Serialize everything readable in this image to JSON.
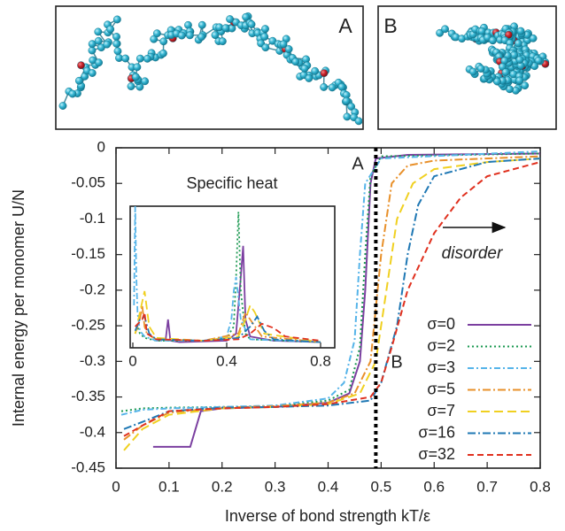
{
  "panels": [
    {
      "label": "A"
    },
    {
      "label": "B"
    }
  ],
  "chart_data": [
    {
      "type": "line",
      "xlabel": "Inverse of bond strength kT/ε",
      "ylabel": "Internal energy per monomer U/N",
      "xlim": [
        0,
        0.8
      ],
      "ylim": [
        -0.45,
        0
      ],
      "xticks": [
        0,
        0.1,
        0.2,
        0.3,
        0.4,
        0.5,
        0.6,
        0.7,
        0.8
      ],
      "yticks": [
        0,
        -0.05,
        -0.1,
        -0.15,
        -0.2,
        -0.25,
        -0.3,
        -0.35,
        -0.4,
        -0.45
      ],
      "legend": "bottom-right",
      "vline": 0.49,
      "annotations": [
        "A",
        "B",
        "disorder"
      ],
      "series": [
        {
          "name": "σ=0",
          "color": "#7b3fa0",
          "dash": "none",
          "x": [
            0.07,
            0.14,
            0.16,
            0.2,
            0.3,
            0.4,
            0.44,
            0.46,
            0.47,
            0.48,
            0.49,
            0.55,
            0.8
          ],
          "values": [
            -0.42,
            -0.42,
            -0.37,
            -0.366,
            -0.364,
            -0.358,
            -0.345,
            -0.3,
            -0.2,
            -0.05,
            -0.015,
            -0.01,
            -0.008
          ]
        },
        {
          "name": "σ=2",
          "color": "#1a9850",
          "dash": "2,3",
          "x": [
            0.01,
            0.05,
            0.1,
            0.3,
            0.4,
            0.44,
            0.46,
            0.47,
            0.48,
            0.5,
            0.8
          ],
          "values": [
            -0.37,
            -0.366,
            -0.365,
            -0.363,
            -0.355,
            -0.34,
            -0.28,
            -0.15,
            -0.04,
            -0.012,
            -0.008
          ]
        },
        {
          "name": "σ=3",
          "color": "#56b4e9",
          "dash": "7,3,2,3",
          "x": [
            0.01,
            0.05,
            0.1,
            0.3,
            0.4,
            0.43,
            0.45,
            0.46,
            0.47,
            0.5,
            0.8
          ],
          "values": [
            -0.375,
            -0.368,
            -0.366,
            -0.362,
            -0.352,
            -0.33,
            -0.27,
            -0.15,
            -0.05,
            -0.015,
            -0.005
          ]
        },
        {
          "name": "σ=5",
          "color": "#e8902a",
          "dash": "9,3,2,3",
          "x": [
            0.015,
            0.05,
            0.1,
            0.2,
            0.3,
            0.4,
            0.45,
            0.48,
            0.5,
            0.52,
            0.55,
            0.6,
            0.8
          ],
          "values": [
            -0.41,
            -0.39,
            -0.372,
            -0.365,
            -0.363,
            -0.358,
            -0.345,
            -0.3,
            -0.15,
            -0.05,
            -0.025,
            -0.018,
            -0.012
          ]
        },
        {
          "name": "σ=7",
          "color": "#f0d020",
          "dash": "10,5",
          "x": [
            0.015,
            0.05,
            0.1,
            0.2,
            0.3,
            0.4,
            0.46,
            0.49,
            0.51,
            0.53,
            0.56,
            0.6,
            0.7,
            0.8
          ],
          "values": [
            -0.425,
            -0.395,
            -0.375,
            -0.366,
            -0.364,
            -0.36,
            -0.345,
            -0.3,
            -0.2,
            -0.1,
            -0.05,
            -0.03,
            -0.02,
            -0.015
          ]
        },
        {
          "name": "σ=16",
          "color": "#1f78b4",
          "dash": "9,3,2,3",
          "x": [
            0.015,
            0.05,
            0.1,
            0.2,
            0.3,
            0.4,
            0.48,
            0.5,
            0.53,
            0.55,
            0.57,
            0.6,
            0.7,
            0.8
          ],
          "values": [
            -0.395,
            -0.385,
            -0.37,
            -0.365,
            -0.364,
            -0.362,
            -0.355,
            -0.33,
            -0.25,
            -0.15,
            -0.08,
            -0.04,
            -0.02,
            -0.015
          ]
        },
        {
          "name": "σ=32",
          "color": "#e0301e",
          "dash": "7,4",
          "x": [
            0.015,
            0.05,
            0.1,
            0.2,
            0.3,
            0.4,
            0.48,
            0.5,
            0.52,
            0.55,
            0.6,
            0.65,
            0.7,
            0.8
          ],
          "values": [
            -0.405,
            -0.39,
            -0.37,
            -0.366,
            -0.364,
            -0.36,
            -0.35,
            -0.33,
            -0.28,
            -0.2,
            -0.12,
            -0.07,
            -0.04,
            -0.02
          ]
        }
      ]
    },
    {
      "type": "line",
      "title": "Specific heat",
      "xlim": [
        0,
        0.8
      ],
      "ylim": [
        0,
        1
      ],
      "xticks": [
        0,
        0.4,
        0.8
      ],
      "series": [
        {
          "color": "#7b3fa0",
          "dash": "none",
          "x": [
            0.1,
            0.14,
            0.15,
            0.16,
            0.2,
            0.4,
            0.44,
            0.46,
            0.47,
            0.48,
            0.5,
            0.6,
            0.8
          ],
          "values": [
            0.05,
            0.06,
            0.2,
            0.05,
            0.04,
            0.05,
            0.1,
            0.5,
            0.72,
            0.2,
            0.08,
            0.05,
            0.04
          ]
        },
        {
          "color": "#1a9850",
          "dash": "2,3",
          "x": [
            0.01,
            0.02,
            0.03,
            0.05,
            0.1,
            0.3,
            0.4,
            0.43,
            0.44,
            0.45,
            0.46,
            0.48,
            0.5,
            0.8
          ],
          "values": [
            0.1,
            0.15,
            0.1,
            0.07,
            0.05,
            0.05,
            0.07,
            0.15,
            0.5,
            0.96,
            0.4,
            0.1,
            0.06,
            0.04
          ]
        },
        {
          "color": "#56b4e9",
          "dash": "7,3,2,3",
          "x": [
            0.005,
            0.01,
            0.015,
            0.02,
            0.03,
            0.05,
            0.1,
            0.3,
            0.4,
            0.42,
            0.43,
            0.44,
            0.46,
            0.5,
            0.8
          ],
          "values": [
            0.3,
            1.0,
            0.5,
            0.25,
            0.12,
            0.08,
            0.05,
            0.05,
            0.08,
            0.2,
            0.4,
            0.5,
            0.2,
            0.06,
            0.04
          ]
        },
        {
          "color": "#e8902a",
          "dash": "9,3,2,3",
          "x": [
            0.01,
            0.03,
            0.04,
            0.05,
            0.06,
            0.1,
            0.3,
            0.45,
            0.48,
            0.5,
            0.55,
            0.8
          ],
          "values": [
            0.1,
            0.2,
            0.3,
            0.15,
            0.1,
            0.06,
            0.05,
            0.1,
            0.25,
            0.2,
            0.08,
            0.04
          ]
        },
        {
          "color": "#f0d020",
          "dash": "10,5",
          "x": [
            0.01,
            0.03,
            0.05,
            0.07,
            0.1,
            0.3,
            0.45,
            0.48,
            0.5,
            0.52,
            0.56,
            0.8
          ],
          "values": [
            0.1,
            0.25,
            0.4,
            0.15,
            0.07,
            0.05,
            0.08,
            0.2,
            0.3,
            0.25,
            0.1,
            0.04
          ]
        },
        {
          "color": "#1f78b4",
          "dash": "9,3,2,3",
          "x": [
            0.01,
            0.03,
            0.05,
            0.07,
            0.1,
            0.3,
            0.45,
            0.5,
            0.53,
            0.56,
            0.6,
            0.8
          ],
          "values": [
            0.12,
            0.2,
            0.22,
            0.1,
            0.06,
            0.05,
            0.07,
            0.15,
            0.22,
            0.12,
            0.06,
            0.04
          ]
        },
        {
          "color": "#e0301e",
          "dash": "7,4",
          "x": [
            0.01,
            0.04,
            0.05,
            0.06,
            0.1,
            0.3,
            0.45,
            0.5,
            0.55,
            0.6,
            0.65,
            0.8
          ],
          "values": [
            0.15,
            0.2,
            0.25,
            0.1,
            0.06,
            0.05,
            0.06,
            0.1,
            0.17,
            0.14,
            0.08,
            0.05
          ]
        }
      ]
    }
  ]
}
